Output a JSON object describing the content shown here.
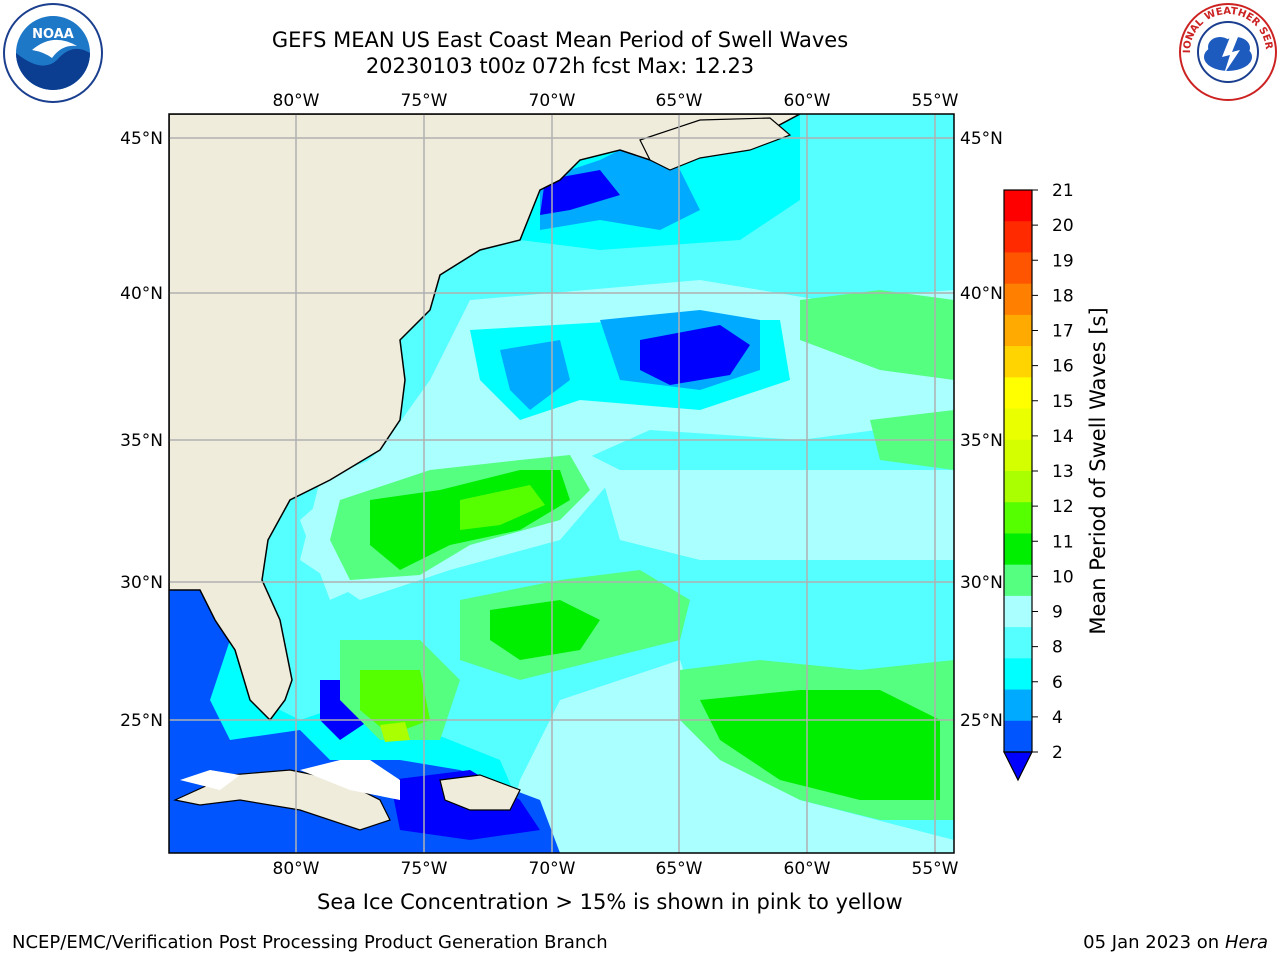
{
  "title_line1": "GEFS MEAN US East Coast Mean Period of Swell Waves",
  "title_line2": "20230103 t00z 072h fcst   Max: 12.23",
  "lon_labels": [
    "80°W",
    "75°W",
    "70°W",
    "65°W",
    "60°W",
    "55°W"
  ],
  "lat_labels": [
    "45°N",
    "40°N",
    "35°N",
    "30°N",
    "25°N"
  ],
  "colorbar": {
    "label": "Mean Period of Swell Waves [s]",
    "ticks": [
      "21",
      "20",
      "19",
      "18",
      "17",
      "16",
      "15",
      "14",
      "13",
      "12",
      "11",
      "10",
      "9",
      "8",
      "6",
      "4",
      "2"
    ],
    "colors": [
      "#ff0000",
      "#ff2a00",
      "#ff5500",
      "#ff7f00",
      "#ffaa00",
      "#ffd400",
      "#ffff00",
      "#eaff00",
      "#d4ff00",
      "#aaff00",
      "#55ff00",
      "#00ee00",
      "#55ff80",
      "#aaffff",
      "#55ffff",
      "#00ffff",
      "#00aaff",
      "#0055ff",
      "#0000ff"
    ]
  },
  "colors": {
    "land": "#efecdc",
    "ocean_light": "#aaffff",
    "ocean_cyan": "#55ffff",
    "ocean_aqua": "#00ffff",
    "ocean_mid_blue": "#00aaff",
    "ocean_blue": "#0055ff",
    "ocean_dark_blue": "#0000ff",
    "green_light": "#55ff80",
    "green": "#00ee00",
    "green_bright": "#55ff00",
    "yellow_green": "#aaff00",
    "grid": "#b0b0b0"
  },
  "note": "Sea Ice Concentration > 15% is shown in pink to yellow",
  "footer_left": "NCEP/EMC/Verification Post Processing Product Generation Branch",
  "footer_date": "05 Jan 2023 on",
  "footer_host": "Hera",
  "logos": {
    "noaa": "NOAA",
    "nws": "NATIONAL WEATHER SERVICE"
  }
}
